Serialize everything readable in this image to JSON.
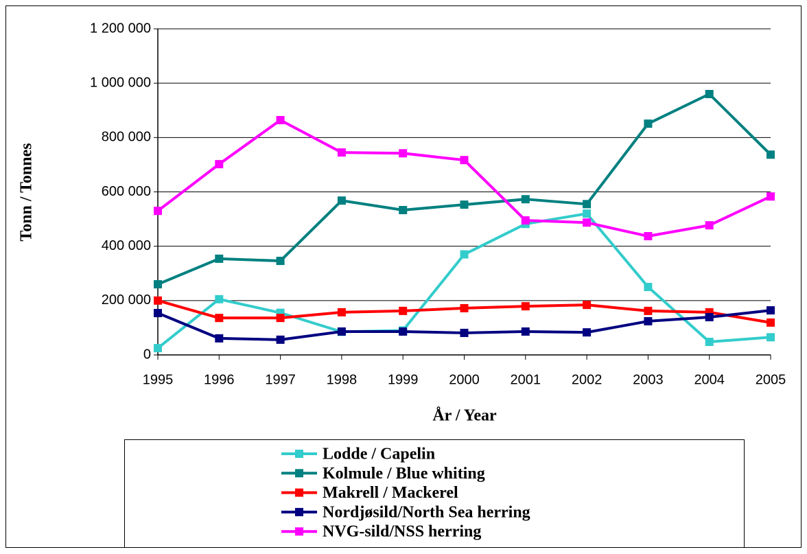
{
  "chart_data": {
    "type": "line",
    "y_label": "Tonn / Tonnes",
    "x_label": "År / Year",
    "x": [
      1995,
      1996,
      1997,
      1998,
      1999,
      2000,
      2001,
      2002,
      2003,
      2004,
      2005
    ],
    "xlim": [
      1995,
      2005
    ],
    "xticks": [
      1995,
      1996,
      1997,
      1998,
      1999,
      2000,
      2001,
      2002,
      2003,
      2004,
      2005
    ],
    "ylim": [
      0,
      1200000
    ],
    "yticks": [
      0,
      {
        "value": 200000,
        "label": "200 000"
      },
      {
        "value": 400000,
        "label": "400 000"
      },
      {
        "value": 600000,
        "label": "600 000"
      },
      {
        "value": 800000,
        "label": "800 000"
      },
      {
        "value": 1000000,
        "label": "1 000 000"
      },
      {
        "value": 1200000,
        "label": "1 200 000"
      }
    ],
    "grid": true,
    "legend": "bottom",
    "series": [
      {
        "name": "Lodde / Capelin",
        "color": "#33cccc",
        "values": [
          25000,
          205000,
          155000,
          85000,
          90000,
          370000,
          482000,
          520000,
          250000,
          48000,
          65000
        ]
      },
      {
        "name": "Kolmule / Blue whiting",
        "color": "#008080",
        "values": [
          260000,
          354000,
          346000,
          568000,
          533000,
          553000,
          573000,
          555000,
          851000,
          960000,
          737000
        ]
      },
      {
        "name": "Makrell / Mackerel",
        "color": "#ff0000",
        "values": [
          200000,
          136000,
          136000,
          157000,
          162000,
          172000,
          179000,
          184000,
          162000,
          157000,
          119000
        ]
      },
      {
        "name": "Nordjøsild/North Sea herring",
        "color": "#000080",
        "values": [
          154000,
          61000,
          56000,
          86000,
          86000,
          81000,
          86000,
          83000,
          124000,
          139000,
          164000
        ]
      },
      {
        "name": "NVG-sild/NSS herring",
        "color": "#ff00ff",
        "values": [
          530000,
          702000,
          864000,
          745000,
          742000,
          717000,
          495000,
          487000,
          437000,
          477000,
          583000
        ]
      }
    ]
  }
}
